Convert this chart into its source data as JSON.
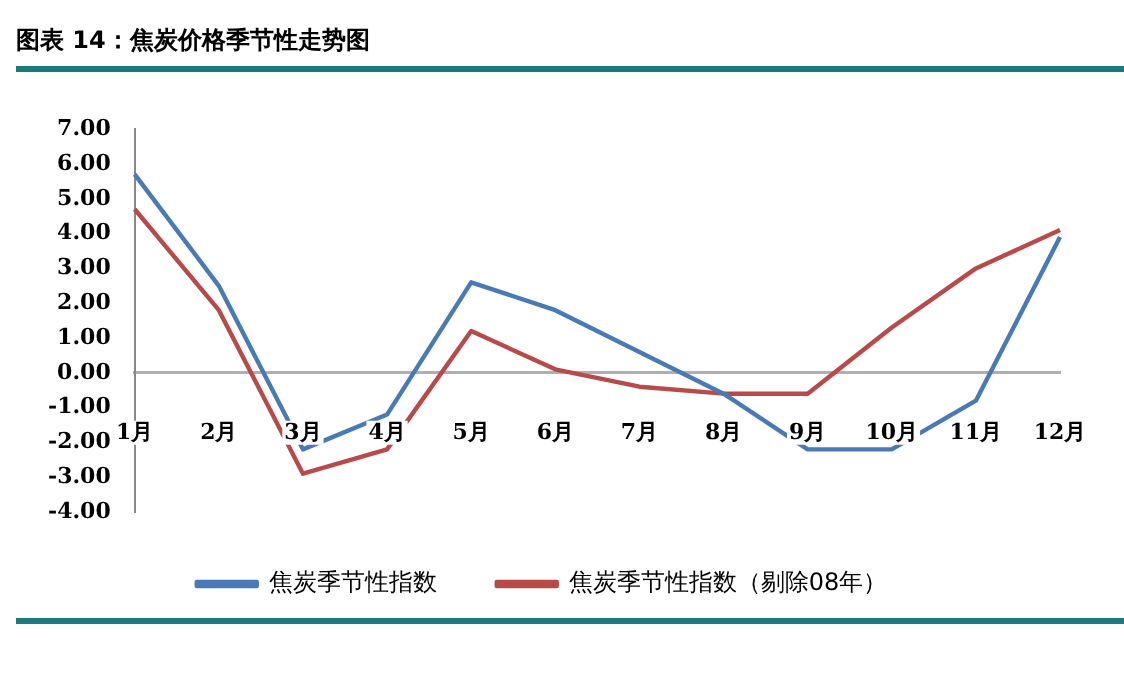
{
  "chart_data": {
    "type": "line",
    "title": "图表 14：焦炭价格季节性走势图",
    "categories": [
      "1月",
      "2月",
      "3月",
      "4月",
      "5月",
      "6月",
      "7月",
      "8月",
      "9月",
      "10月",
      "11月",
      "12月"
    ],
    "series": [
      {
        "name": "焦炭季节性指数",
        "color": "#4a7ab5",
        "values": [
          5.7,
          2.5,
          -2.2,
          -1.2,
          2.6,
          1.8,
          0.6,
          -0.6,
          -2.2,
          -2.2,
          -0.8,
          3.9
        ]
      },
      {
        "name": "焦炭季节性指数（剔除08年）",
        "color": "#b84a4a",
        "values": [
          4.7,
          1.8,
          -2.9,
          -2.2,
          1.2,
          0.1,
          -0.4,
          -0.6,
          -0.6,
          1.3,
          3.0,
          4.1
        ]
      }
    ],
    "ylim": [
      -4,
      7
    ],
    "yticks": [
      {
        "value": 7,
        "label": "7.00"
      },
      {
        "value": 6,
        "label": "6.00"
      },
      {
        "value": 5,
        "label": "5.00"
      },
      {
        "value": 4,
        "label": "4.00"
      },
      {
        "value": 3,
        "label": "3.00"
      },
      {
        "value": 2,
        "label": "2.00"
      },
      {
        "value": 1,
        "label": "1.00"
      },
      {
        "value": 0,
        "label": "0.00"
      },
      {
        "value": -1,
        "label": "-1.00"
      },
      {
        "value": -2,
        "label": "-2.00"
      },
      {
        "value": -3,
        "label": "-3.00"
      },
      {
        "value": -4,
        "label": "-4.00"
      }
    ],
    "grid": false,
    "legend": "bottom",
    "marker": "none",
    "line_style": "solid"
  }
}
